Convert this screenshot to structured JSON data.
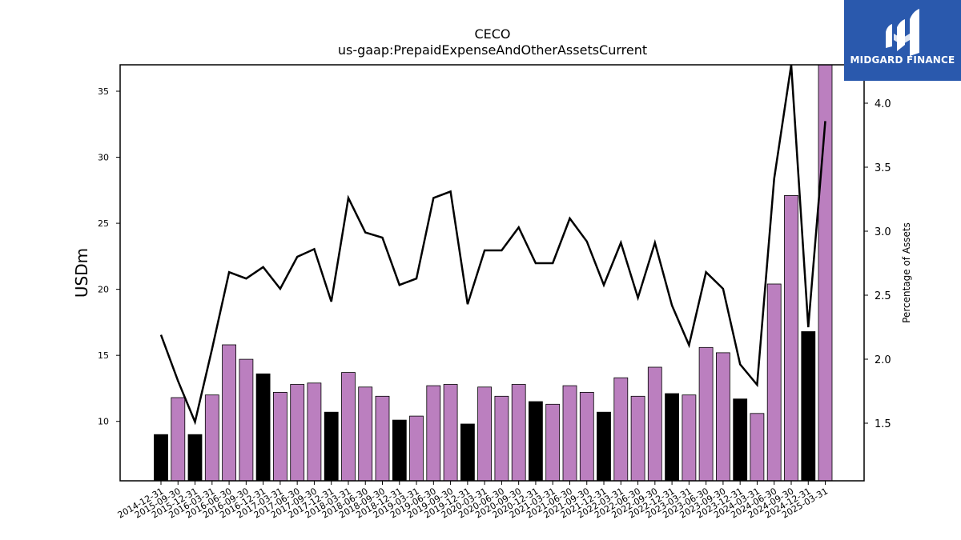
{
  "chart_data": {
    "type": "bar",
    "title": "CECO",
    "subtitle": "us-gaap:PrepaidExpenseAndOtherAssetsCurrent",
    "ylabel": "USDm",
    "y2label": "Percentage of Assets",
    "ylim": [
      5.5,
      37
    ],
    "y2lim": [
      1.05,
      4.3
    ],
    "yticks": [
      10,
      15,
      20,
      25,
      30,
      35
    ],
    "y2ticks": [
      1.5,
      2.0,
      2.5,
      3.0,
      3.5,
      4.0
    ],
    "categories": [
      "2014-12-31",
      "2015-09-30",
      "2015-12-31",
      "2016-03-31",
      "2016-06-30",
      "2016-09-30",
      "2016-12-31",
      "2017-03-31",
      "2017-06-30",
      "2017-09-30",
      "2017-12-31",
      "2018-03-31",
      "2018-06-30",
      "2018-09-30",
      "2018-12-31",
      "2019-03-31",
      "2019-06-30",
      "2019-09-30",
      "2019-12-31",
      "2020-03-31",
      "2020-06-30",
      "2020-09-30",
      "2020-12-31",
      "2021-03-31",
      "2021-06-30",
      "2021-09-30",
      "2021-12-31",
      "2022-03-31",
      "2022-06-30",
      "2022-09-30",
      "2022-12-31",
      "2023-03-31",
      "2023-06-30",
      "2023-09-30",
      "2023-12-31",
      "2024-03-31",
      "2024-06-30",
      "2024-09-30",
      "2024-12-31",
      "2025-03-31"
    ],
    "series": [
      {
        "type": "bar",
        "values": [
          9.0,
          11.8,
          9.0,
          12.0,
          15.8,
          14.7,
          13.6,
          12.2,
          12.8,
          12.9,
          10.7,
          13.7,
          12.6,
          11.9,
          10.1,
          10.4,
          12.7,
          12.8,
          9.8,
          12.6,
          11.9,
          12.8,
          11.5,
          11.3,
          12.7,
          12.2,
          10.7,
          13.3,
          11.9,
          14.1,
          12.1,
          12.0,
          15.6,
          15.2,
          11.7,
          10.6,
          20.4,
          27.1,
          16.8,
          37.0
        ],
        "colors": [
          "#000000",
          "#bb7fbf",
          "#000000",
          "#bb7fbf",
          "#bb7fbf",
          "#bb7fbf",
          "#000000",
          "#bb7fbf",
          "#bb7fbf",
          "#bb7fbf",
          "#000000",
          "#bb7fbf",
          "#bb7fbf",
          "#bb7fbf",
          "#000000",
          "#bb7fbf",
          "#bb7fbf",
          "#bb7fbf",
          "#000000",
          "#bb7fbf",
          "#bb7fbf",
          "#bb7fbf",
          "#000000",
          "#bb7fbf",
          "#bb7fbf",
          "#bb7fbf",
          "#000000",
          "#bb7fbf",
          "#bb7fbf",
          "#bb7fbf",
          "#000000",
          "#bb7fbf",
          "#bb7fbf",
          "#bb7fbf",
          "#000000",
          "#bb7fbf",
          "#bb7fbf",
          "#bb7fbf",
          "#000000",
          "#bb7fbf"
        ]
      },
      {
        "type": "line",
        "axis": "right",
        "color": "#000000",
        "values": [
          2.19,
          1.83,
          1.51,
          2.08,
          2.68,
          2.63,
          2.72,
          2.55,
          2.8,
          2.86,
          2.45,
          3.26,
          2.99,
          2.95,
          2.58,
          2.63,
          3.26,
          3.31,
          2.43,
          2.85,
          2.85,
          3.03,
          2.75,
          2.75,
          3.1,
          2.92,
          2.58,
          2.91,
          2.48,
          2.91,
          2.42,
          2.11,
          2.68,
          2.55,
          1.96,
          1.8,
          3.41,
          4.34,
          2.25,
          3.86
        ]
      }
    ]
  },
  "logo": {
    "text": "MIDGARD FINANCE",
    "color": "#2a59ad"
  }
}
